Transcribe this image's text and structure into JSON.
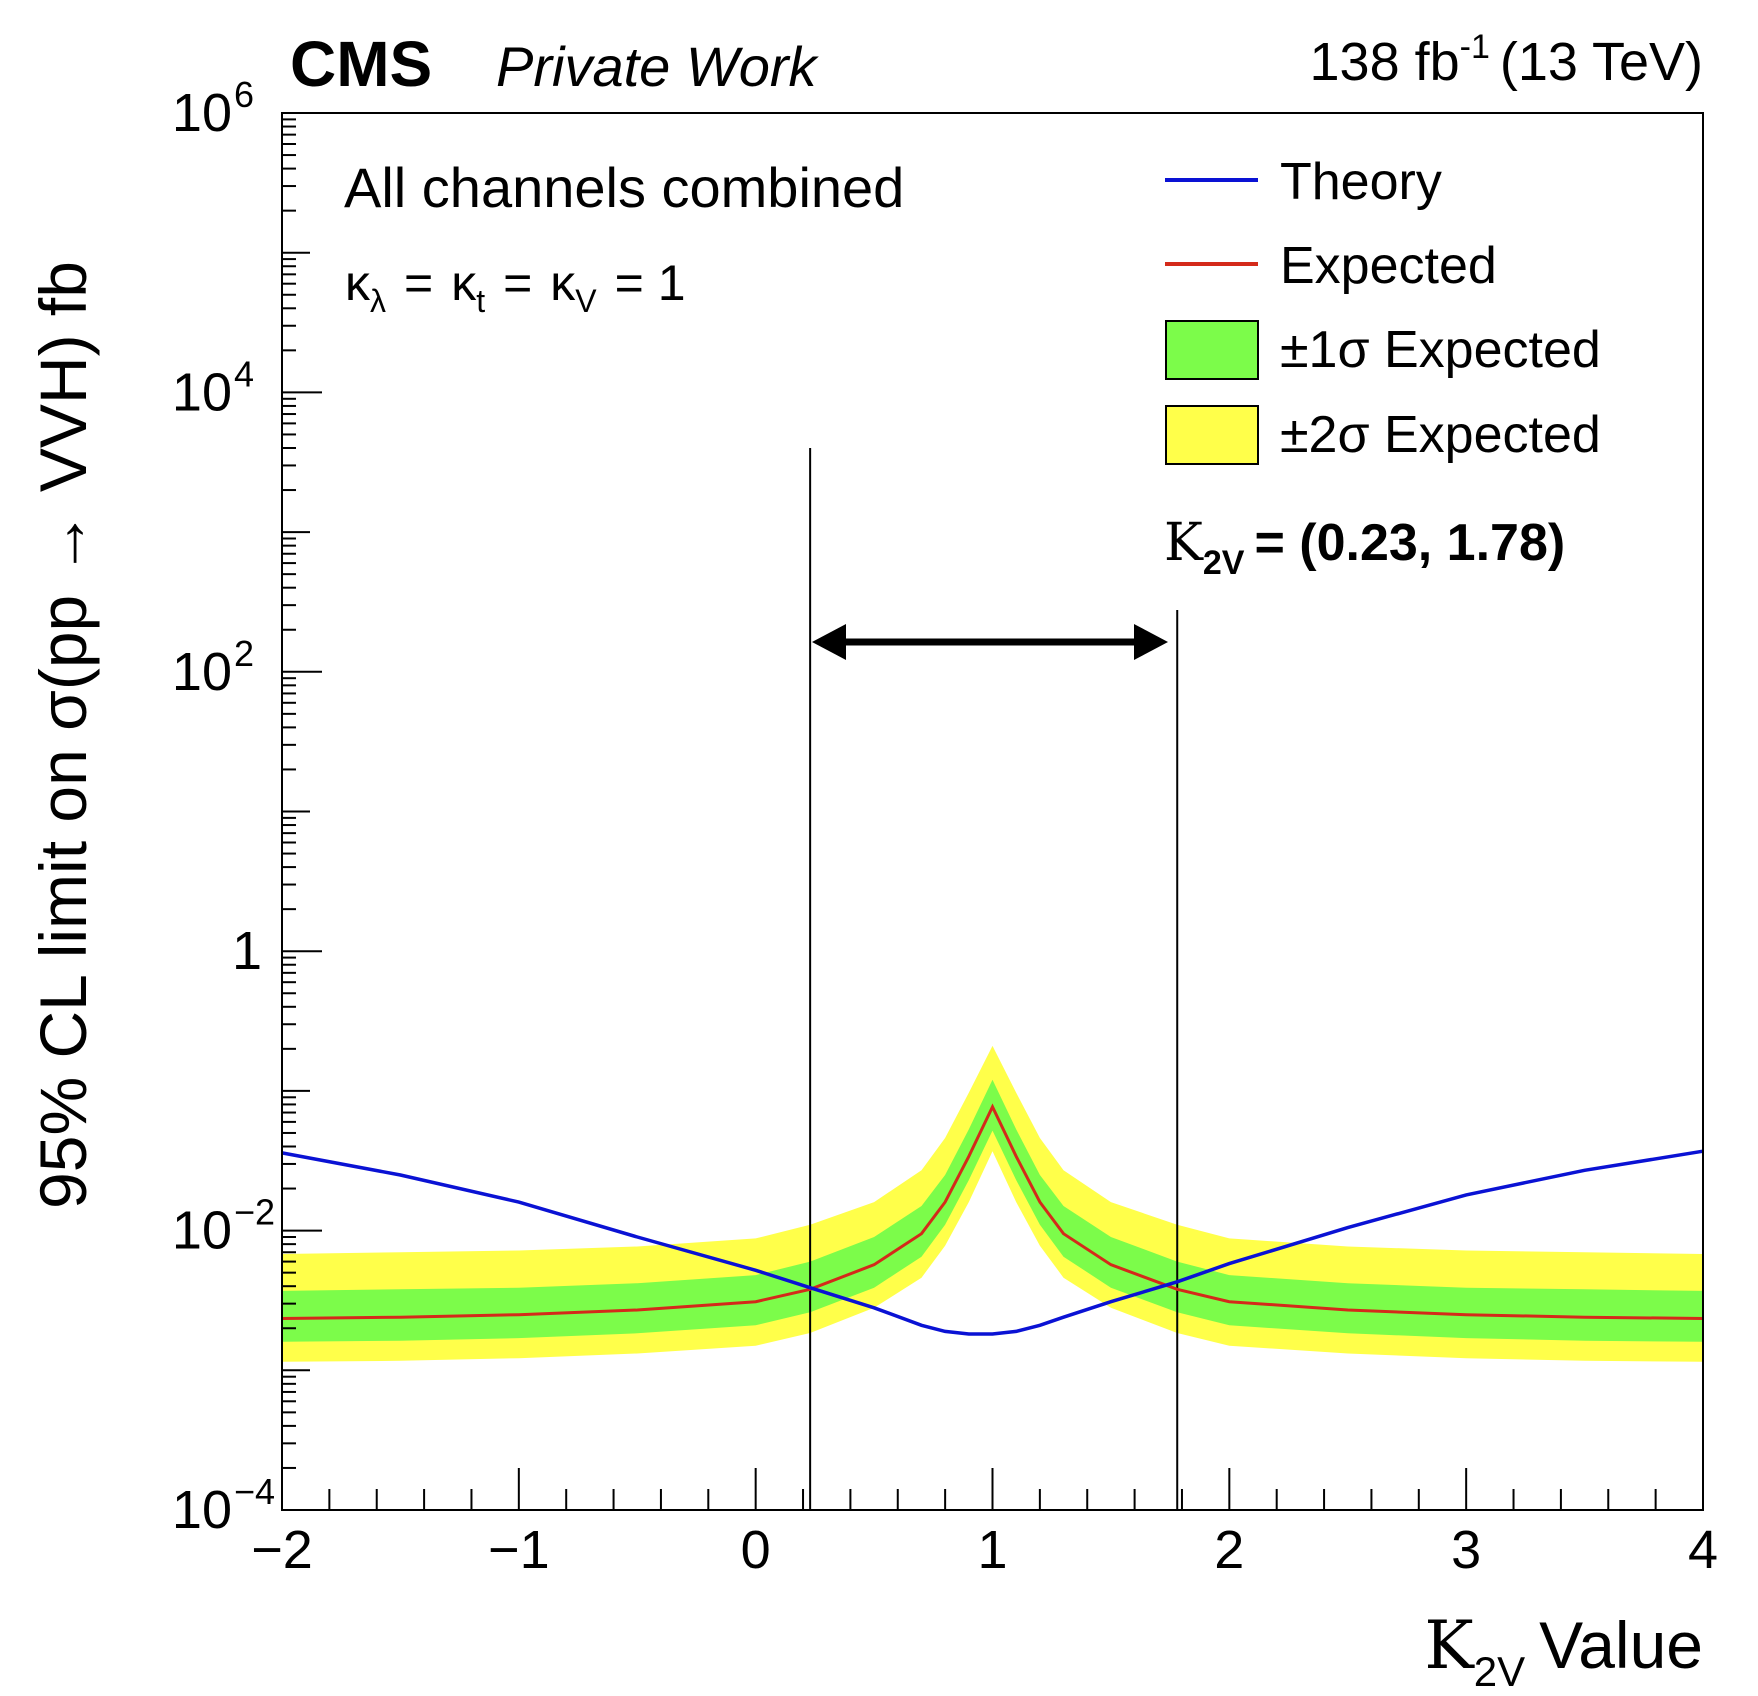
{
  "header": {
    "experiment": "CMS",
    "experiment_note": "Private Work",
    "luminosity": "138 fb",
    "luminosity_exponent": "-1",
    "energy": "(13 TeV)"
  },
  "annotations": {
    "channel_label": "All channels combined",
    "couplings": {
      "k_lambda": "κ",
      "sub_lambda": "λ",
      "k_t": "κ",
      "sub_t": "t",
      "k_v": "κ",
      "sub_v": "V",
      "eq1": "=",
      "eq2": "=",
      "eq3": "= 1"
    },
    "interval": {
      "symbol": "K",
      "subscript": "2V",
      "text": "= (0.23, 1.78)",
      "low": 0.23,
      "high": 1.78
    }
  },
  "legend": {
    "placement": "top-right",
    "theory_label": "Theory",
    "expected_label": "Expected",
    "one_sigma_label": "±1σ Expected",
    "two_sigma_label": "±2σ Expected"
  },
  "colors": {
    "theory": "#0a12d4",
    "expected": "#d42a1a",
    "one_sigma": "#7cfc4a",
    "two_sigma": "#ffff4a",
    "interval": "#000000"
  },
  "chart_data": {
    "type": "line",
    "title": "",
    "xlabel_symbol": "K",
    "xlabel_sub": "2V",
    "xlabel_text": "Value",
    "ylabel": "95% CL limit on σ(pp → VVH) fb",
    "xlim": [
      -2,
      4
    ],
    "ylim": [
      0.0001,
      1000000
    ],
    "yscale": "log",
    "grid": false,
    "x_ticks": [
      "−2",
      "−1",
      "0",
      "1",
      "2",
      "3",
      "4"
    ],
    "x_tick_values": [
      -2,
      -1,
      0,
      1,
      2,
      3,
      4
    ],
    "y_ticks": [
      {
        "value": 0.0001,
        "base": "10",
        "exp": "−4"
      },
      {
        "value": 0.01,
        "base": "10",
        "exp": "−2"
      },
      {
        "value": 1,
        "base": "1",
        "exp": ""
      },
      {
        "value": 100,
        "base": "10",
        "exp": "2"
      },
      {
        "value": 10000,
        "base": "10",
        "exp": "4"
      },
      {
        "value": 1000000,
        "base": "10",
        "exp": "6"
      }
    ],
    "x": [
      -2,
      -1.5,
      -1,
      -0.5,
      0,
      0.23,
      0.5,
      0.7,
      0.8,
      0.9,
      1,
      1.1,
      1.2,
      1.3,
      1.5,
      1.78,
      2,
      2.5,
      3,
      3.5,
      4
    ],
    "series": [
      {
        "name": "Theory",
        "values": [
          0.036,
          0.025,
          0.016,
          0.009,
          0.0052,
          0.0039,
          0.0028,
          0.0021,
          0.0019,
          0.00182,
          0.00182,
          0.0019,
          0.0021,
          0.0024,
          0.0031,
          0.0043,
          0.0058,
          0.0105,
          0.018,
          0.027,
          0.037
        ]
      },
      {
        "name": "Expected",
        "values": [
          0.00235,
          0.0024,
          0.0025,
          0.0027,
          0.0031,
          0.0038,
          0.0057,
          0.0095,
          0.016,
          0.034,
          0.077,
          0.034,
          0.016,
          0.0095,
          0.0057,
          0.0038,
          0.0031,
          0.0027,
          0.0025,
          0.0024,
          0.00235
        ]
      },
      {
        "name": "±1σ Expected",
        "lower": [
          0.0016,
          0.00163,
          0.0017,
          0.00184,
          0.0021,
          0.0026,
          0.0039,
          0.0065,
          0.011,
          0.023,
          0.052,
          0.023,
          0.011,
          0.0065,
          0.0039,
          0.0026,
          0.0021,
          0.00184,
          0.0017,
          0.00163,
          0.0016
        ],
        "upper": [
          0.0037,
          0.0038,
          0.0039,
          0.0042,
          0.0048,
          0.006,
          0.009,
          0.015,
          0.025,
          0.053,
          0.12,
          0.053,
          0.025,
          0.015,
          0.009,
          0.006,
          0.0048,
          0.0042,
          0.0039,
          0.0038,
          0.0037
        ]
      },
      {
        "name": "±2σ Expected",
        "lower": [
          0.00115,
          0.00117,
          0.00122,
          0.00132,
          0.0015,
          0.00185,
          0.0028,
          0.0046,
          0.0078,
          0.016,
          0.037,
          0.016,
          0.0078,
          0.0046,
          0.0028,
          0.00185,
          0.0015,
          0.00132,
          0.00122,
          0.00117,
          0.00115
        ],
        "upper": [
          0.0068,
          0.007,
          0.0072,
          0.0077,
          0.0088,
          0.011,
          0.016,
          0.027,
          0.046,
          0.097,
          0.21,
          0.097,
          0.046,
          0.027,
          0.016,
          0.011,
          0.0088,
          0.0077,
          0.0072,
          0.007,
          0.0068
        ]
      }
    ]
  }
}
